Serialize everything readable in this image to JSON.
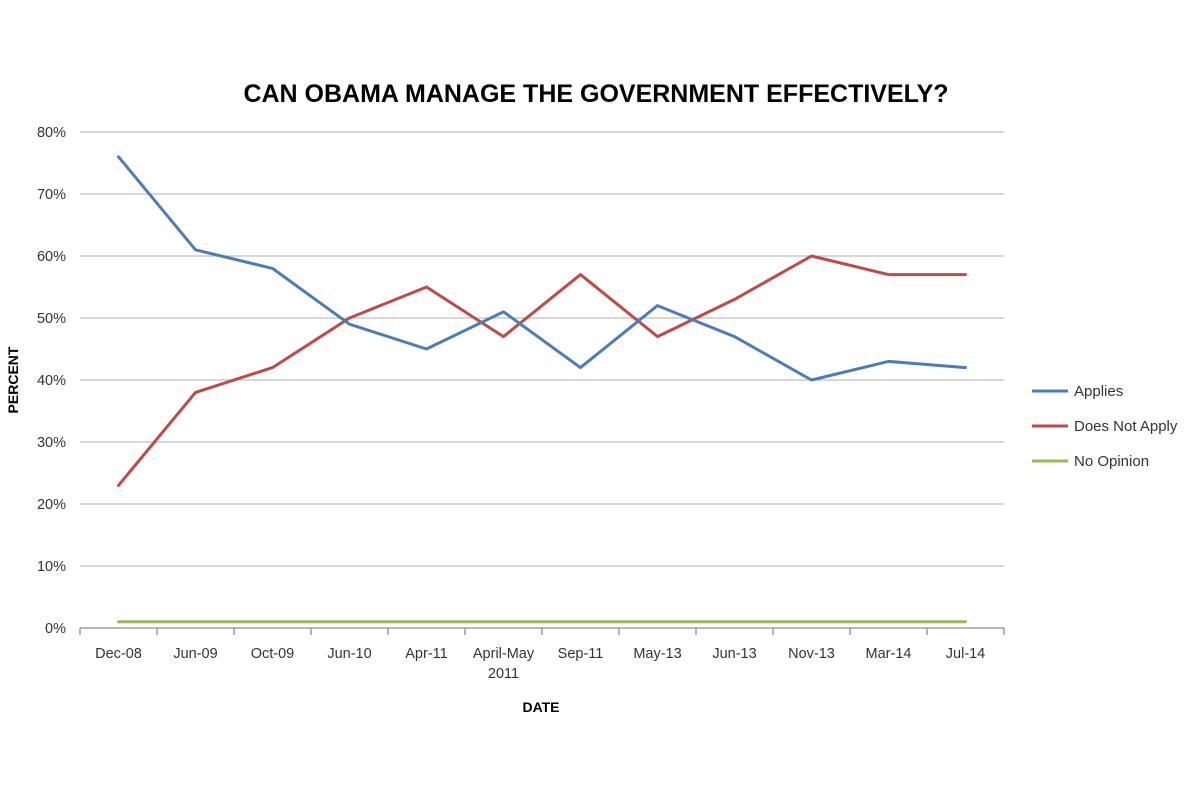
{
  "chart_data": {
    "type": "line",
    "title": "CAN OBAMA MANAGE THE GOVERNMENT EFFECTIVELY?",
    "xlabel": "DATE",
    "ylabel": "PERCENT",
    "categories": [
      [
        "Dec-08"
      ],
      [
        "Jun-09"
      ],
      [
        "Oct-09"
      ],
      [
        "Jun-10"
      ],
      [
        "Apr-11"
      ],
      [
        "April-May",
        "2011"
      ],
      [
        "Sep-11"
      ],
      [
        "May-13"
      ],
      [
        "Jun-13"
      ],
      [
        "Nov-13"
      ],
      [
        "Mar-14"
      ],
      [
        "Jul-14"
      ]
    ],
    "y_ticks": [
      "0%",
      "10%",
      "20%",
      "30%",
      "40%",
      "50%",
      "60%",
      "70%",
      "80%"
    ],
    "ylim": [
      0,
      80
    ],
    "grid": true,
    "legend_position": "right",
    "series": [
      {
        "name": "Applies",
        "color": "#4a7ebb",
        "values": [
          76,
          61,
          58,
          49,
          45,
          51,
          42,
          52,
          47,
          40,
          43,
          42
        ]
      },
      {
        "name": "Does Not Apply",
        "color": "#be4b48",
        "values": [
          23,
          38,
          42,
          50,
          55,
          47,
          57,
          47,
          53,
          60,
          57,
          57
        ]
      },
      {
        "name": "No Opinion",
        "color": "#98b954",
        "values": [
          1,
          1,
          1,
          1,
          1,
          1,
          1,
          1,
          1,
          1,
          1,
          1
        ]
      }
    ]
  }
}
